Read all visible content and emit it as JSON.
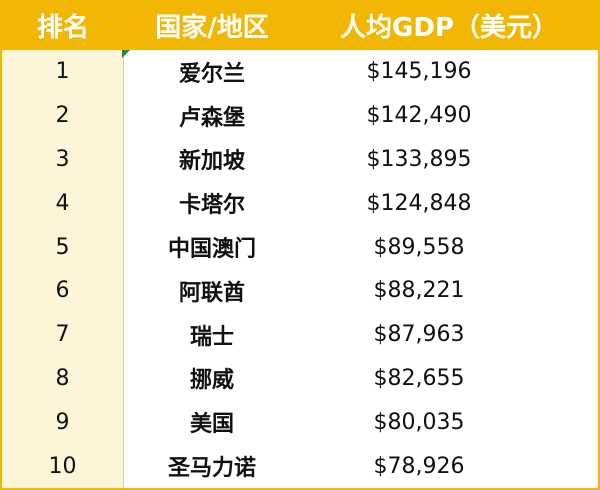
{
  "headers": {
    "rank": "排名",
    "country": "国家/地区",
    "gdp": "人均GDP（美元）"
  },
  "rows": [
    {
      "rank": "1",
      "country": "爱尔兰",
      "gdp": "$145,196"
    },
    {
      "rank": "2",
      "country": "卢森堡",
      "gdp": "$142,490"
    },
    {
      "rank": "3",
      "country": "新加坡",
      "gdp": "$133,895"
    },
    {
      "rank": "4",
      "country": "卡塔尔",
      "gdp": "$124,848"
    },
    {
      "rank": "5",
      "country": "中国澳门",
      "gdp": "$89,558"
    },
    {
      "rank": "6",
      "country": "阿联酋",
      "gdp": "$88,221"
    },
    {
      "rank": "7",
      "country": "瑞士",
      "gdp": "$87,963"
    },
    {
      "rank": "8",
      "country": "挪威",
      "gdp": "$82,655"
    },
    {
      "rank": "9",
      "country": "美国",
      "gdp": "$80,035"
    },
    {
      "rank": "10",
      "country": "圣马力诺",
      "gdp": "$78,926"
    }
  ],
  "colors": {
    "header_bg": "#f2b705",
    "rank_col_bg": "#fdf5d8",
    "marker": "#1e8e3e"
  }
}
